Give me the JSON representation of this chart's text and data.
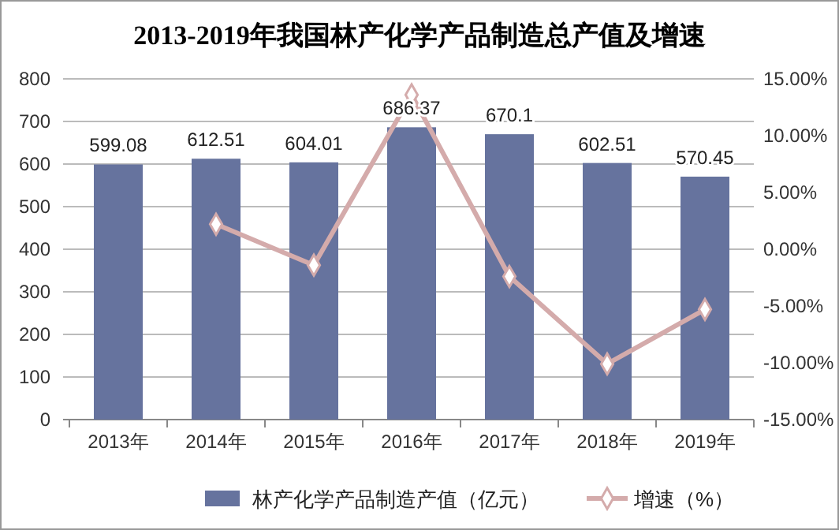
{
  "chart_data": {
    "type": "bar",
    "title": "2013-2019年我国林产化学产品制造总产值及增速",
    "categories": [
      "2013年",
      "2014年",
      "2015年",
      "2016年",
      "2017年",
      "2018年",
      "2019年"
    ],
    "series": [
      {
        "name": "林产化学产品制造产值（亿元）",
        "color": "#66739e",
        "values": [
          599.08,
          612.51,
          604.01,
          686.37,
          670.1,
          602.51,
          570.45
        ],
        "value_labels": [
          "599.08",
          "612.51",
          "604.01",
          "686.37",
          "670.1",
          "602.51",
          "570.45"
        ]
      },
      {
        "name": "增速（%）",
        "type": "line",
        "axis": "y2",
        "color": "#d4abab",
        "marker": "diamond",
        "values": [
          null,
          2.2,
          -1.4,
          13.6,
          -2.4,
          -10.1,
          -5.3
        ]
      }
    ],
    "ylim": [
      0,
      800
    ],
    "yticks": [
      0,
      100,
      200,
      300,
      400,
      500,
      600,
      700,
      800
    ],
    "y2lim": [
      -15,
      15
    ],
    "y2ticks": [
      {
        "value": -15,
        "label": "-15.00%"
      },
      {
        "value": -10,
        "label": "-10.00%"
      },
      {
        "value": -5,
        "label": "-5.00%"
      },
      {
        "value": 0,
        "label": "0.00%"
      },
      {
        "value": 5,
        "label": "5.00%"
      },
      {
        "value": 10,
        "label": "10.00%"
      },
      {
        "value": 15,
        "label": "15.00%"
      }
    ],
    "grid": "y",
    "legend": "bottom"
  }
}
